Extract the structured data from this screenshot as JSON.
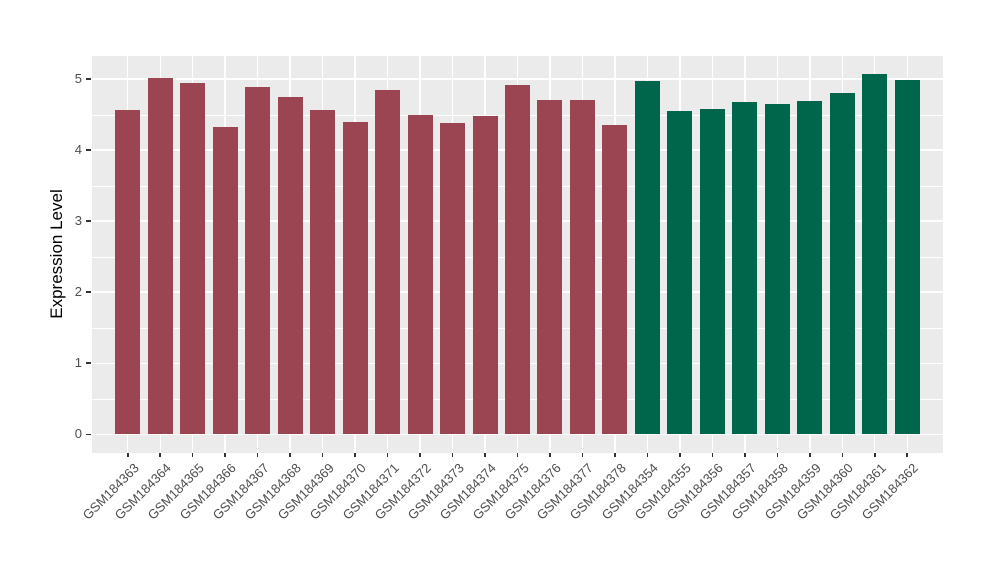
{
  "chart_data": {
    "type": "bar",
    "title": "",
    "xlabel": "",
    "ylabel": "Expression Level",
    "ylim": [
      0,
      5.1
    ],
    "y_ticks": [
      0,
      1,
      2,
      3,
      4,
      5
    ],
    "y_tick_labels": [
      "0",
      "1",
      "2",
      "3",
      "4",
      "5"
    ],
    "y_minor_ticks": [
      0.5,
      1.5,
      2.5,
      3.5,
      4.5
    ],
    "grid": "white major and minor gridlines on gray panel",
    "legend": "none",
    "categories": [
      "GSM184363",
      "GSM184364",
      "GSM184365",
      "GSM184366",
      "GSM184367",
      "GSM184368",
      "GSM184369",
      "GSM184370",
      "GSM184371",
      "GSM184372",
      "GSM184373",
      "GSM184374",
      "GSM184375",
      "GSM184376",
      "GSM184377",
      "GSM184378",
      "GSM184354",
      "GSM184355",
      "GSM184356",
      "GSM184357",
      "GSM184358",
      "GSM184359",
      "GSM184360",
      "GSM184361",
      "GSM184362"
    ],
    "values": [
      4.56,
      5.01,
      4.95,
      4.32,
      4.89,
      4.75,
      4.57,
      4.4,
      4.85,
      4.49,
      4.38,
      4.48,
      4.92,
      4.7,
      4.7,
      4.35,
      4.97,
      4.55,
      4.58,
      4.68,
      4.65,
      4.69,
      4.81,
      5.07,
      4.99
    ],
    "groups": [
      "group1",
      "group1",
      "group1",
      "group1",
      "group1",
      "group1",
      "group1",
      "group1",
      "group1",
      "group1",
      "group1",
      "group1",
      "group1",
      "group1",
      "group1",
      "group1",
      "group2",
      "group2",
      "group2",
      "group2",
      "group2",
      "group2",
      "group2",
      "group2",
      "group2"
    ],
    "group_colors": {
      "group1": "#9B4452",
      "group2": "#00664B"
    },
    "colors": {
      "panel_background": "#EBEBEB",
      "grid": "#FFFFFF",
      "axis_text": "#4D4D4D",
      "axis_title": "#000000",
      "tick_marks": "#333333"
    }
  }
}
